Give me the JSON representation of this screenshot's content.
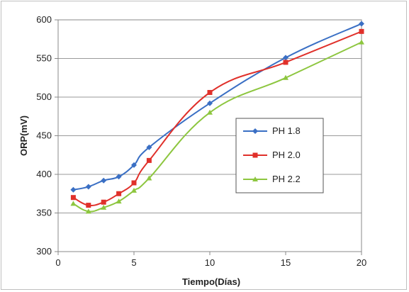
{
  "chart_data": {
    "type": "line",
    "title": "",
    "xlabel": "Tiempo(Días)",
    "ylabel": "ORP(mV)",
    "xlim": [
      0,
      20
    ],
    "ylim": [
      300,
      600
    ],
    "xticks": [
      0,
      5,
      10,
      15,
      20
    ],
    "yticks": [
      300,
      350,
      400,
      450,
      500,
      550,
      600
    ],
    "grid": "horizontal",
    "legend_position": "right",
    "series": [
      {
        "name": "PH 1.8",
        "color": "#3a6fc4",
        "marker": "diamond",
        "x": [
          1,
          2,
          3,
          4,
          5,
          6,
          10,
          15,
          20
        ],
        "y": [
          380,
          384,
          392,
          397,
          412,
          435,
          492,
          551,
          595
        ]
      },
      {
        "name": "PH 2.0",
        "color": "#e0302a",
        "marker": "square",
        "x": [
          1,
          2,
          3,
          4,
          5,
          6,
          10,
          15,
          20
        ],
        "y": [
          370,
          360,
          364,
          375,
          389,
          418,
          506,
          545,
          585
        ]
      },
      {
        "name": "PH 2.2",
        "color": "#8dc63f",
        "marker": "triangle",
        "x": [
          1,
          2,
          3,
          4,
          5,
          6,
          10,
          15,
          20
        ],
        "y": [
          362,
          352,
          357,
          365,
          379,
          395,
          480,
          525,
          571
        ]
      }
    ]
  }
}
